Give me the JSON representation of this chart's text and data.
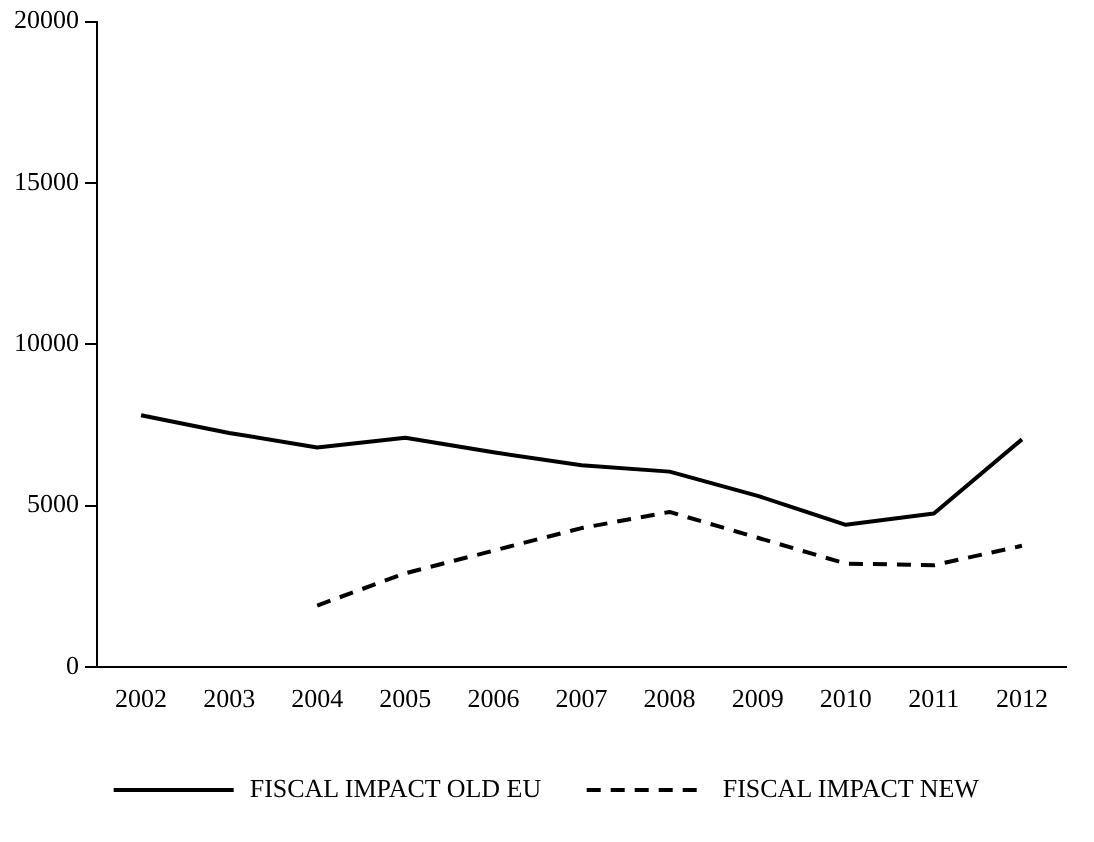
{
  "chart_data": {
    "type": "line",
    "categories": [
      "2002",
      "2003",
      "2004",
      "2005",
      "2006",
      "2007",
      "2008",
      "2009",
      "2010",
      "2011",
      "2012"
    ],
    "series": [
      {
        "name": "FISCAL IMPACT OLD EU",
        "color": "#000000",
        "line_style": "solid",
        "values": [
          7800,
          7250,
          6800,
          7100,
          6650,
          6250,
          6050,
          5300,
          4400,
          4750,
          7050
        ]
      },
      {
        "name": "FISCAL IMPACT NEW",
        "color": "#000000",
        "line_style": "dashed",
        "values": [
          null,
          null,
          1900,
          2900,
          3600,
          4300,
          4800,
          4000,
          3200,
          3150,
          3750
        ]
      }
    ],
    "ylim": [
      0,
      20000
    ],
    "yticks": [
      0,
      5000,
      10000,
      15000,
      20000
    ],
    "grid": false,
    "legend": "bottom",
    "marker": "none"
  }
}
